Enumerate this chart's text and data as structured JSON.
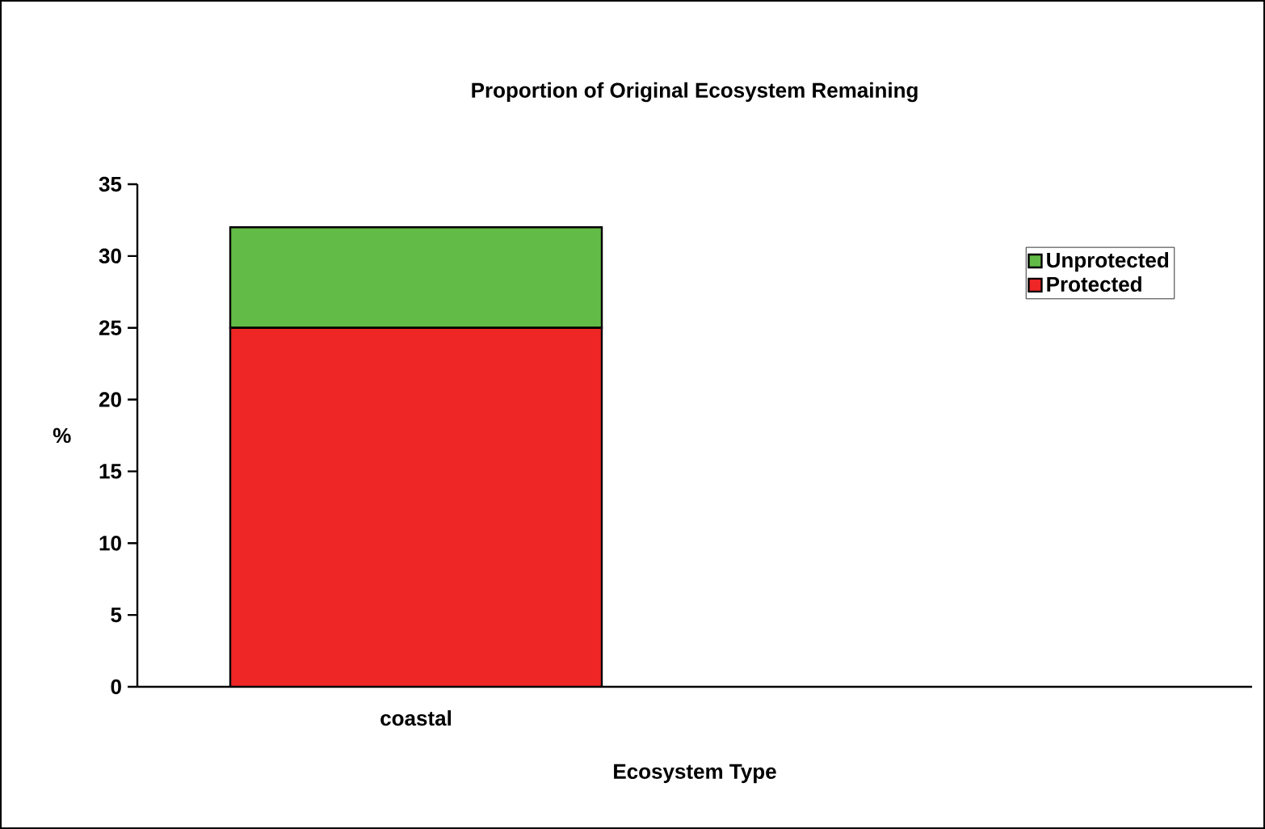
{
  "chart_data": {
    "type": "bar",
    "title": "Proportion of Original Ecosystem Remaining",
    "xlabel": "Ecosystem Type",
    "ylabel": "%",
    "categories": [
      "coastal",
      null
    ],
    "stacked": true,
    "legend": "top right",
    "ylim": [
      0,
      35
    ],
    "yticks": [
      0,
      5,
      10,
      15,
      20,
      25,
      30,
      35
    ],
    "series": [
      {
        "name": "Protected",
        "color": "#ee2626",
        "values": [
          25,
          null
        ]
      },
      {
        "name": "Unprotected",
        "color": "#62bb46",
        "values": [
          7,
          null
        ]
      }
    ]
  }
}
